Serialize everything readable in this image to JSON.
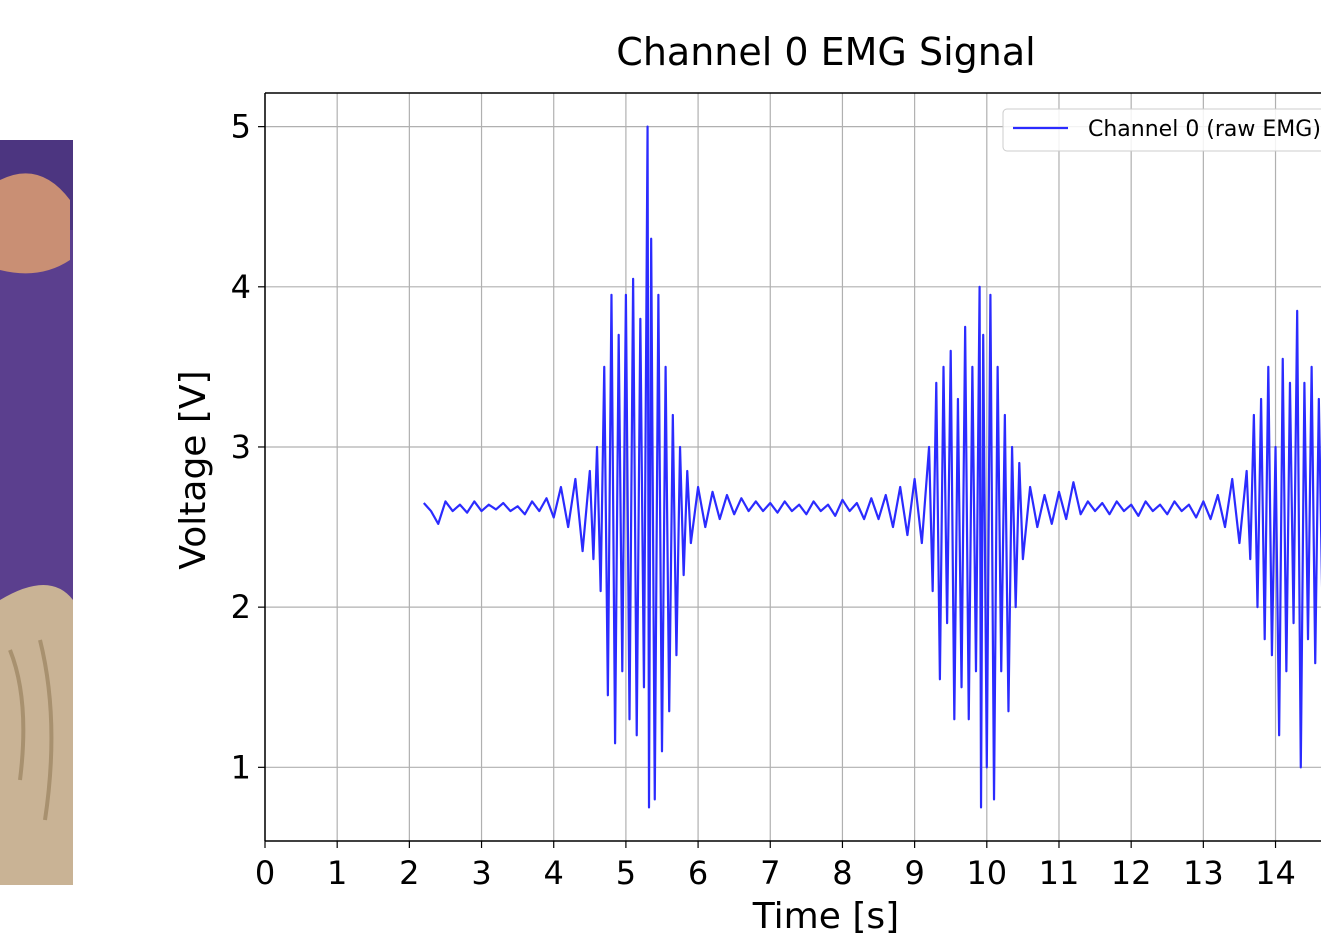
{
  "chart_data": {
    "type": "line",
    "title": "Channel 0 EMG Signal",
    "x_label": "Time [s]",
    "y_label": "Voltage [V]",
    "x": [
      2.2,
      2.3,
      2.4,
      2.5,
      2.6,
      2.7,
      2.8,
      2.9,
      3.0,
      3.1,
      3.2,
      3.3,
      3.4,
      3.5,
      3.6,
      3.7,
      3.8,
      3.9,
      4.0,
      4.1,
      4.2,
      4.3,
      4.4,
      4.5,
      4.55,
      4.6,
      4.65,
      4.7,
      4.75,
      4.8,
      4.85,
      4.9,
      4.95,
      5.0,
      5.05,
      5.1,
      5.15,
      5.2,
      5.25,
      5.3,
      5.32,
      5.35,
      5.4,
      5.45,
      5.5,
      5.55,
      5.6,
      5.65,
      5.7,
      5.75,
      5.8,
      5.85,
      5.9,
      6.0,
      6.1,
      6.2,
      6.3,
      6.4,
      6.5,
      6.6,
      6.7,
      6.8,
      6.9,
      7.0,
      7.1,
      7.2,
      7.3,
      7.4,
      7.5,
      7.6,
      7.7,
      7.8,
      7.9,
      8.0,
      8.1,
      8.2,
      8.3,
      8.4,
      8.5,
      8.6,
      8.7,
      8.8,
      8.9,
      9.0,
      9.1,
      9.2,
      9.25,
      9.3,
      9.35,
      9.4,
      9.45,
      9.5,
      9.55,
      9.6,
      9.65,
      9.7,
      9.75,
      9.8,
      9.85,
      9.9,
      9.92,
      9.95,
      10.0,
      10.05,
      10.1,
      10.15,
      10.2,
      10.25,
      10.3,
      10.35,
      10.4,
      10.45,
      10.5,
      10.6,
      10.7,
      10.8,
      10.9,
      11.0,
      11.1,
      11.2,
      11.3,
      11.4,
      11.5,
      11.6,
      11.7,
      11.8,
      11.9,
      12.0,
      12.1,
      12.2,
      12.3,
      12.4,
      12.5,
      12.6,
      12.7,
      12.8,
      12.9,
      13.0,
      13.1,
      13.2,
      13.3,
      13.4,
      13.5,
      13.6,
      13.65,
      13.7,
      13.75,
      13.8,
      13.85,
      13.9,
      13.95,
      14.0,
      14.05,
      14.1,
      14.15,
      14.2,
      14.25,
      14.3,
      14.35,
      14.4,
      14.45,
      14.5,
      14.55,
      14.6,
      14.65
    ],
    "series": [
      {
        "name": "Channel 0 (raw EMG)",
        "color": "#2b2bff",
        "values": [
          2.65,
          2.6,
          2.52,
          2.66,
          2.6,
          2.64,
          2.59,
          2.66,
          2.6,
          2.64,
          2.61,
          2.65,
          2.6,
          2.63,
          2.58,
          2.66,
          2.6,
          2.68,
          2.56,
          2.75,
          2.5,
          2.8,
          2.35,
          2.85,
          2.3,
          3.0,
          2.1,
          3.5,
          1.45,
          3.95,
          1.15,
          3.7,
          1.6,
          3.95,
          1.3,
          4.05,
          1.2,
          3.8,
          1.5,
          5.0,
          0.75,
          4.3,
          0.8,
          3.95,
          1.1,
          3.5,
          1.35,
          3.2,
          1.7,
          3.0,
          2.2,
          2.85,
          2.4,
          2.75,
          2.5,
          2.72,
          2.55,
          2.7,
          2.58,
          2.68,
          2.6,
          2.66,
          2.6,
          2.65,
          2.59,
          2.66,
          2.6,
          2.64,
          2.58,
          2.66,
          2.6,
          2.64,
          2.57,
          2.67,
          2.6,
          2.65,
          2.55,
          2.68,
          2.55,
          2.7,
          2.5,
          2.75,
          2.45,
          2.8,
          2.4,
          3.0,
          2.1,
          3.4,
          1.55,
          3.5,
          1.9,
          3.6,
          1.3,
          3.3,
          1.5,
          3.75,
          1.3,
          3.5,
          1.6,
          4.0,
          0.75,
          3.7,
          1.0,
          3.95,
          0.8,
          3.5,
          1.6,
          3.2,
          1.35,
          3.0,
          2.0,
          2.9,
          2.3,
          2.75,
          2.5,
          2.7,
          2.52,
          2.72,
          2.55,
          2.78,
          2.58,
          2.66,
          2.6,
          2.65,
          2.58,
          2.66,
          2.6,
          2.64,
          2.57,
          2.66,
          2.6,
          2.64,
          2.58,
          2.66,
          2.6,
          2.64,
          2.56,
          2.66,
          2.55,
          2.7,
          2.5,
          2.8,
          2.4,
          2.85,
          2.3,
          3.2,
          2.0,
          3.3,
          1.8,
          3.5,
          1.7,
          3.0,
          1.2,
          3.55,
          1.6,
          3.4,
          1.9,
          3.85,
          1.0,
          3.4,
          1.8,
          3.5,
          1.65,
          3.3,
          2.0
        ]
      }
    ],
    "xlim": [
      0,
      14.63
    ],
    "ylim": [
      0.54,
      5.21
    ],
    "xticks": [
      0,
      1,
      2,
      3,
      4,
      5,
      6,
      7,
      8,
      9,
      10,
      11,
      12,
      13,
      14
    ],
    "yticks": [
      1,
      2,
      3,
      4,
      5
    ],
    "grid": true,
    "legend": "upper right"
  }
}
